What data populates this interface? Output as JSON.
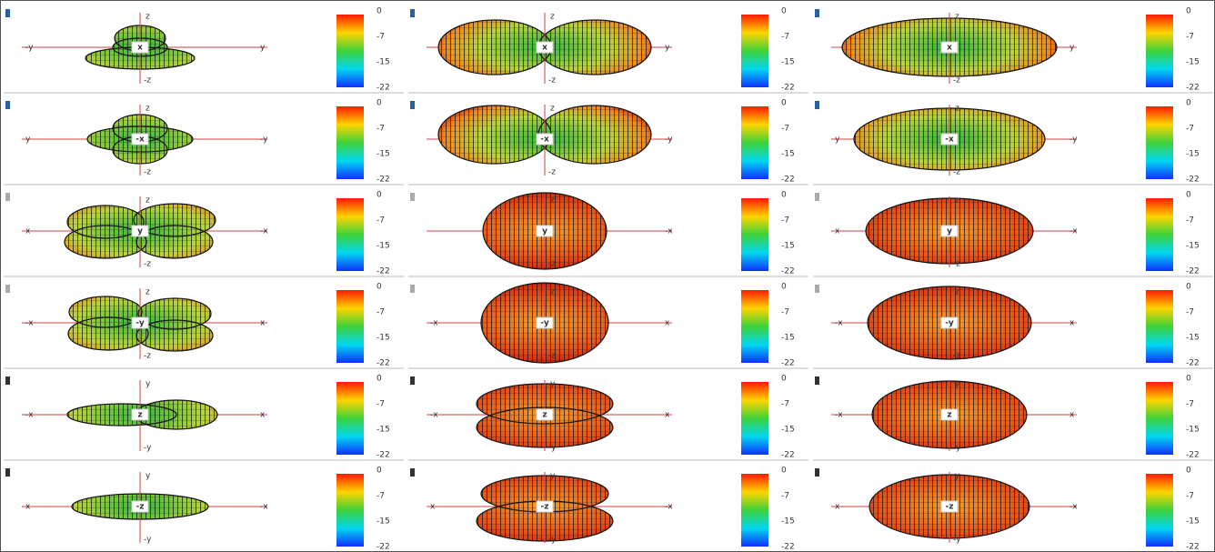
{
  "colorbar_ticks": [
    0,
    -7,
    -15,
    -22
  ],
  "panels": [
    [
      {
        "top": "z",
        "bottom": "-z",
        "left": "-y",
        "right": "y",
        "center": "x"
      },
      {
        "top": "z",
        "bottom": "-z",
        "right": "y",
        "center": "x"
      },
      {
        "top": "z",
        "bottom": "-z",
        "right": "y",
        "center": "x"
      }
    ],
    [
      {
        "top": "z",
        "bottom": "-z",
        "left": "y",
        "right": "-y",
        "center": "-x"
      },
      {
        "top": "z",
        "bottom": "-z",
        "right": "-y",
        "center": "-x"
      },
      {
        "top": "z",
        "bottom": "-z",
        "left": "y",
        "right": "-y",
        "center": "-x"
      }
    ],
    [
      {
        "top": "z",
        "bottom": "-z",
        "left": "x",
        "right": "-x",
        "center": "y"
      },
      {
        "top": "z",
        "bottom": "-z",
        "right": "-x",
        "center": "y"
      },
      {
        "top": "z",
        "bottom": "-z",
        "left": "x",
        "right": "-x",
        "center": "y"
      }
    ],
    [
      {
        "top": "z",
        "bottom": "-z",
        "left": "-x",
        "right": "x",
        "center": "-y"
      },
      {
        "top": "z",
        "bottom": "-z",
        "left": "-x",
        "right": "x",
        "center": "-y"
      },
      {
        "top": "z",
        "bottom": "-z",
        "left": "-x",
        "right": "x",
        "center": "-y"
      }
    ],
    [
      {
        "top": "y",
        "bottom": "-y",
        "left": "-x",
        "right": "x",
        "center": "z"
      },
      {
        "top": "y",
        "bottom": "-y",
        "left": "-x",
        "right": "x",
        "center": "z"
      },
      {
        "top": "y",
        "bottom": "-y",
        "left": "-x",
        "right": "x",
        "center": "z"
      }
    ],
    [
      {
        "top": "y",
        "bottom": "-y",
        "left": "x",
        "right": "-x",
        "center": "-z"
      },
      {
        "top": "y",
        "bottom": "-y",
        "left": "x",
        "right": "-x",
        "center": "-z"
      },
      {
        "top": "y",
        "bottom": "-y",
        "left": "x",
        "right": "-x",
        "center": "-z"
      }
    ]
  ]
}
